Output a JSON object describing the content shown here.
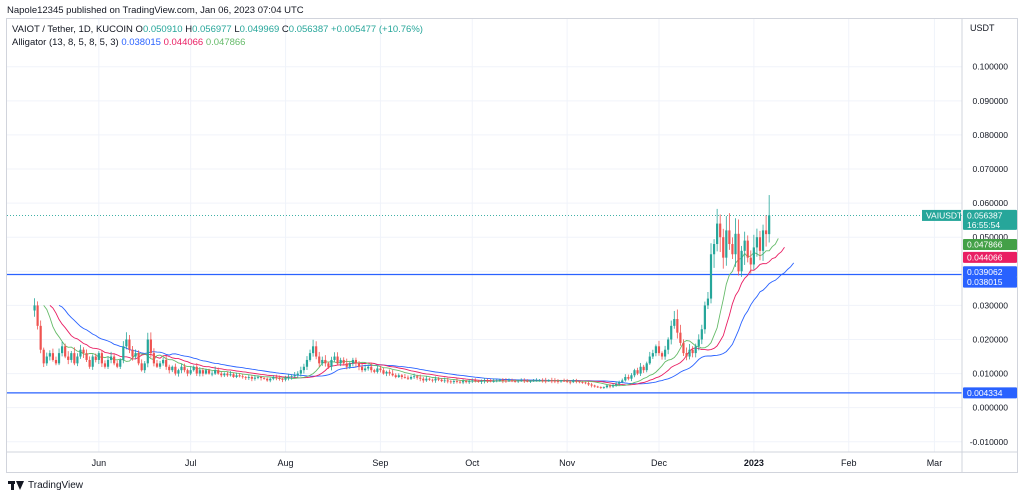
{
  "header": {
    "published": "Napole12345 published on TradingView.com, Jan 06, 2023 07:04 UTC"
  },
  "legend": {
    "symbol": "VAIOT / Tether, 1D, KUCOIN",
    "open_label": "O",
    "open": "0.050910",
    "high_label": "H",
    "high": "0.056977",
    "low_label": "L",
    "low": "0.049969",
    "close_label": "C",
    "close": "0.056387",
    "change": "+0.005477 (+10.76%)",
    "alligator_label": "Alligator (13, 8, 5, 8, 5, 3)",
    "jaw": "0.038015",
    "teeth": "0.044066",
    "lips": "0.047866"
  },
  "footer": {
    "brand": "TradingView"
  },
  "colors": {
    "up": "#26a69a",
    "down": "#ef5350",
    "jaw": "#2962ff",
    "teeth": "#e91e63",
    "lips": "#66bb6a",
    "hline": "#2962ff",
    "grid": "#f0f3fa"
  },
  "chart_data": {
    "type": "candlestick",
    "currency": "USDT",
    "ylim": [
      -0.013,
      0.114
    ],
    "y_ticks": [
      "0.100000",
      "0.090000",
      "0.080000",
      "0.070000",
      "0.060000",
      "0.050000",
      "0.040000",
      "0.030000",
      "0.020000",
      "0.010000",
      "0.000000",
      "-0.010000"
    ],
    "y_tick_values": [
      0.1,
      0.09,
      0.08,
      0.07,
      0.06,
      0.05,
      0.04,
      0.03,
      0.02,
      0.01,
      0.0,
      -0.01
    ],
    "x_ticks": [
      "Jun",
      "Jul",
      "Aug",
      "Sep",
      "Oct",
      "Nov",
      "Dec",
      "2023",
      "Feb",
      "Mar"
    ],
    "x_tick_dates": [
      "2022-06-01",
      "2022-07-01",
      "2022-08-01",
      "2022-09-01",
      "2022-10-01",
      "2022-11-01",
      "2022-12-01",
      "2023-01-01",
      "2023-02-01",
      "2023-03-01"
    ],
    "x_range": [
      "2022-05-02",
      "2023-03-10"
    ],
    "last_candle_date": "2023-01-06",
    "close_series": [
      0.03,
      0.024,
      0.017,
      0.013,
      0.015,
      0.016,
      0.014,
      0.013,
      0.016,
      0.018,
      0.015,
      0.014,
      0.016,
      0.013,
      0.015,
      0.017,
      0.016,
      0.014,
      0.012,
      0.015,
      0.014,
      0.016,
      0.013,
      0.012,
      0.014,
      0.015,
      0.013,
      0.012,
      0.014,
      0.018,
      0.02,
      0.017,
      0.015,
      0.016,
      0.013,
      0.011,
      0.013,
      0.02,
      0.016,
      0.013,
      0.012,
      0.013,
      0.014,
      0.012,
      0.011,
      0.012,
      0.01,
      0.011,
      0.012,
      0.011,
      0.01,
      0.011,
      0.012,
      0.01,
      0.011,
      0.01,
      0.011,
      0.01,
      0.01,
      0.011,
      0.01,
      0.0095,
      0.01,
      0.0095,
      0.0098,
      0.009,
      0.0095,
      0.0092,
      0.009,
      0.0088,
      0.009,
      0.0085,
      0.0088,
      0.009,
      0.0087,
      0.0085,
      0.008,
      0.0085,
      0.009,
      0.0088,
      0.0084,
      0.0082,
      0.0086,
      0.009,
      0.0092,
      0.0095,
      0.01,
      0.011,
      0.012,
      0.014,
      0.016,
      0.018,
      0.015,
      0.013,
      0.014,
      0.013,
      0.012,
      0.014,
      0.015,
      0.013,
      0.014,
      0.013,
      0.012,
      0.013,
      0.014,
      0.013,
      0.012,
      0.011,
      0.0115,
      0.012,
      0.011,
      0.0105,
      0.0115,
      0.011,
      0.01,
      0.0105,
      0.01,
      0.0095,
      0.009,
      0.0095,
      0.009,
      0.0088,
      0.0085,
      0.009,
      0.0092,
      0.0088,
      0.0085,
      0.008,
      0.0085,
      0.0082,
      0.008,
      0.0085,
      0.0082,
      0.0078,
      0.008,
      0.0077,
      0.0075,
      0.0078,
      0.0076,
      0.0074,
      0.0078,
      0.0075,
      0.0077,
      0.008,
      0.0078,
      0.0076,
      0.0078,
      0.008,
      0.0079,
      0.0077,
      0.0078,
      0.008,
      0.0082,
      0.0079,
      0.0078,
      0.008,
      0.0078,
      0.0077,
      0.0079,
      0.008,
      0.0078,
      0.0077,
      0.0078,
      0.0079,
      0.008,
      0.0081,
      0.0079,
      0.0078,
      0.008,
      0.0079,
      0.0078,
      0.0077,
      0.0079,
      0.0078,
      0.0076,
      0.0075,
      0.0078,
      0.0077,
      0.0075,
      0.0074,
      0.0072,
      0.0068,
      0.0065,
      0.0062,
      0.006,
      0.0058,
      0.006,
      0.0065,
      0.0062,
      0.0066,
      0.007,
      0.0075,
      0.008,
      0.009,
      0.0085,
      0.0095,
      0.011,
      0.01,
      0.012,
      0.011,
      0.013,
      0.015,
      0.016,
      0.018,
      0.016,
      0.015,
      0.017,
      0.02,
      0.024,
      0.026,
      0.022,
      0.019,
      0.016,
      0.015,
      0.017,
      0.016,
      0.018,
      0.02,
      0.023,
      0.03,
      0.032,
      0.045,
      0.048,
      0.054,
      0.05,
      0.044,
      0.052,
      0.048,
      0.045,
      0.051,
      0.04,
      0.046,
      0.049,
      0.044,
      0.042,
      0.047,
      0.05,
      0.046,
      0.052,
      0.0509,
      0.056387
    ],
    "series": [
      {
        "name": "VAIUSDT",
        "last": 0.056387,
        "countdown": "16:55:54"
      },
      {
        "name": "Jaw",
        "last": 0.038015
      },
      {
        "name": "Teeth",
        "last": 0.044066
      },
      {
        "name": "Lips",
        "last": 0.047866
      }
    ],
    "horizontal_lines": [
      0.039062,
      0.004334
    ],
    "price_labels": {
      "last_symbol": "VAIUSDT",
      "last": "0.056387",
      "countdown": "16:55:54",
      "lips": "0.047866",
      "teeth": "0.044066",
      "hline1": "0.039062",
      "jaw": "0.038015",
      "hline2": "0.004334"
    }
  }
}
